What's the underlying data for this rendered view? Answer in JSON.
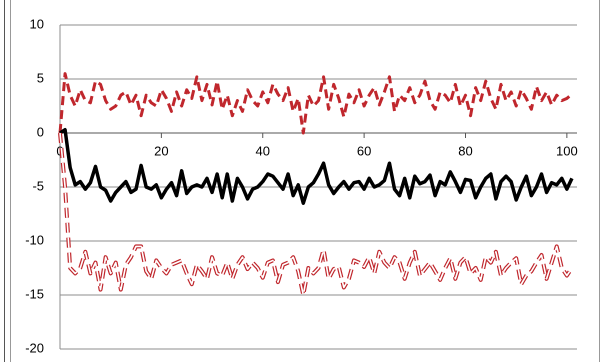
{
  "chart_data": {
    "type": "line",
    "x": [
      0,
      1,
      2,
      3,
      4,
      5,
      6,
      7,
      8,
      9,
      10,
      11,
      12,
      13,
      14,
      15,
      16,
      17,
      18,
      19,
      20,
      21,
      22,
      23,
      24,
      25,
      26,
      27,
      28,
      29,
      30,
      31,
      32,
      33,
      34,
      35,
      36,
      37,
      38,
      39,
      40,
      41,
      42,
      43,
      44,
      45,
      46,
      47,
      48,
      49,
      50,
      51,
      52,
      53,
      54,
      55,
      56,
      57,
      58,
      59,
      60,
      61,
      62,
      63,
      64,
      65,
      66,
      67,
      68,
      69,
      70,
      71,
      72,
      73,
      74,
      75,
      76,
      77,
      78,
      79,
      80,
      81,
      82,
      83,
      84,
      85,
      86,
      87,
      88,
      89,
      90,
      91,
      92,
      93,
      94,
      95,
      96,
      97,
      98,
      99,
      100,
      101
    ],
    "series": [
      {
        "color": "#c0272d",
        "line_style": "dashed",
        "values": [
          0,
          5.5,
          3.5,
          2.5,
          4,
          3,
          2.8,
          4.8,
          4.5,
          3,
          2.2,
          2.5,
          3.5,
          3.8,
          2.6,
          3.5,
          1.6,
          3.5,
          2.8,
          2.5,
          4,
          3.2,
          2,
          3.8,
          2.5,
          4,
          3.2,
          5.2,
          3,
          4.5,
          2.6,
          4.8,
          2.2,
          3.5,
          1.6,
          3,
          2,
          4,
          3,
          2.5,
          3.8,
          2.8,
          4.5,
          3.6,
          3,
          4.2,
          2,
          3.2,
          0,
          3.5,
          2.5,
          3,
          5.2,
          2.2,
          4.5,
          3.2,
          1.5,
          3.6,
          2.8,
          4,
          2.5,
          3.5,
          4.2,
          2.6,
          3.8,
          5.2,
          2,
          3.5,
          3,
          4.2,
          2.8,
          3.5,
          4.8,
          3,
          2.2,
          3.8,
          3.5,
          2.8,
          4.5,
          2.5,
          3.5,
          1.6,
          4.2,
          3,
          4.8,
          3.2,
          2.2,
          4.5,
          3,
          3.8,
          2.5,
          4,
          3.2,
          2.2,
          4.3,
          3,
          3.8,
          2.6,
          3.5,
          3,
          3.2,
          3.6
        ]
      },
      {
        "color": "#000000",
        "line_style": "solid",
        "values": [
          0,
          0.3,
          -3.2,
          -4.8,
          -4.5,
          -5.2,
          -4.6,
          -3.1,
          -5,
          -5.3,
          -6.3,
          -5.5,
          -5,
          -4.5,
          -5.5,
          -5.2,
          -3,
          -5,
          -5.2,
          -4.8,
          -6,
          -5.2,
          -4.6,
          -5.8,
          -3.5,
          -5.6,
          -5,
          -4.8,
          -5,
          -4.2,
          -5.5,
          -3.8,
          -6,
          -3.8,
          -6.3,
          -4.2,
          -5,
          -6.1,
          -5.2,
          -5,
          -4.5,
          -3.8,
          -4,
          -4.6,
          -5.2,
          -3.8,
          -5.8,
          -4.8,
          -6.5,
          -5,
          -4.6,
          -3.8,
          -2.8,
          -4.8,
          -5.6,
          -5,
          -4.5,
          -5.2,
          -4.6,
          -4.5,
          -5.2,
          -4.2,
          -5,
          -4.8,
          -4.4,
          -2.8,
          -5.2,
          -5.8,
          -4.2,
          -6,
          -4,
          -4.7,
          -4.5,
          -3.9,
          -5.8,
          -4.5,
          -4.8,
          -3.6,
          -4.5,
          -5.5,
          -4.3,
          -4.4,
          -6,
          -5,
          -4.2,
          -3.8,
          -6.1,
          -4.5,
          -4,
          -4.5,
          -6.2,
          -5,
          -4,
          -5.8,
          -5,
          -3.8,
          -5.5,
          -4.6,
          -4.8,
          -4.2,
          -5.2,
          -4.2
        ]
      },
      {
        "color": "#c0272d",
        "line_style": "hollow-dashed",
        "values": [
          0,
          -5,
          -12.5,
          -13,
          -12.5,
          -11,
          -13,
          -12,
          -14.5,
          -11.5,
          -13,
          -12,
          -14.5,
          -12.2,
          -11.5,
          -10.5,
          -10.5,
          -12.8,
          -13.5,
          -11.8,
          -12.5,
          -13,
          -12.2,
          -12,
          -11.8,
          -13,
          -14,
          -12.2,
          -12.8,
          -13.5,
          -11.5,
          -13,
          -13.2,
          -12,
          -13.5,
          -12.2,
          -11.5,
          -12.6,
          -12,
          -12.5,
          -13.4,
          -12,
          -11.8,
          -13.8,
          -12.2,
          -12,
          -11.5,
          -12.8,
          -15,
          -12.5,
          -13,
          -12.5,
          -10.8,
          -13.5,
          -12.6,
          -12.4,
          -14.3,
          -13.5,
          -11.8,
          -12,
          -12.4,
          -11.5,
          -13,
          -11,
          -12,
          -12.5,
          -11.5,
          -12,
          -13.5,
          -12,
          -11,
          -13.2,
          -12.6,
          -12,
          -12.8,
          -13.6,
          -12.5,
          -11.6,
          -13.5,
          -12,
          -11.5,
          -13,
          -12.5,
          -13.6,
          -11.5,
          -12,
          -11,
          -13.2,
          -12.5,
          -12,
          -11.6,
          -14,
          -13.2,
          -12.8,
          -12,
          -11.3,
          -13.5,
          -12,
          -10.5,
          -12.5,
          -13.2,
          -12.5
        ]
      }
    ],
    "xlim": [
      0,
      102
    ],
    "xticks": [
      0,
      20,
      40,
      60,
      80,
      100
    ],
    "ylim": [
      -20,
      10
    ],
    "yticks": [
      -20,
      -15,
      -10,
      -5,
      0,
      5,
      10
    ],
    "grid": true
  }
}
